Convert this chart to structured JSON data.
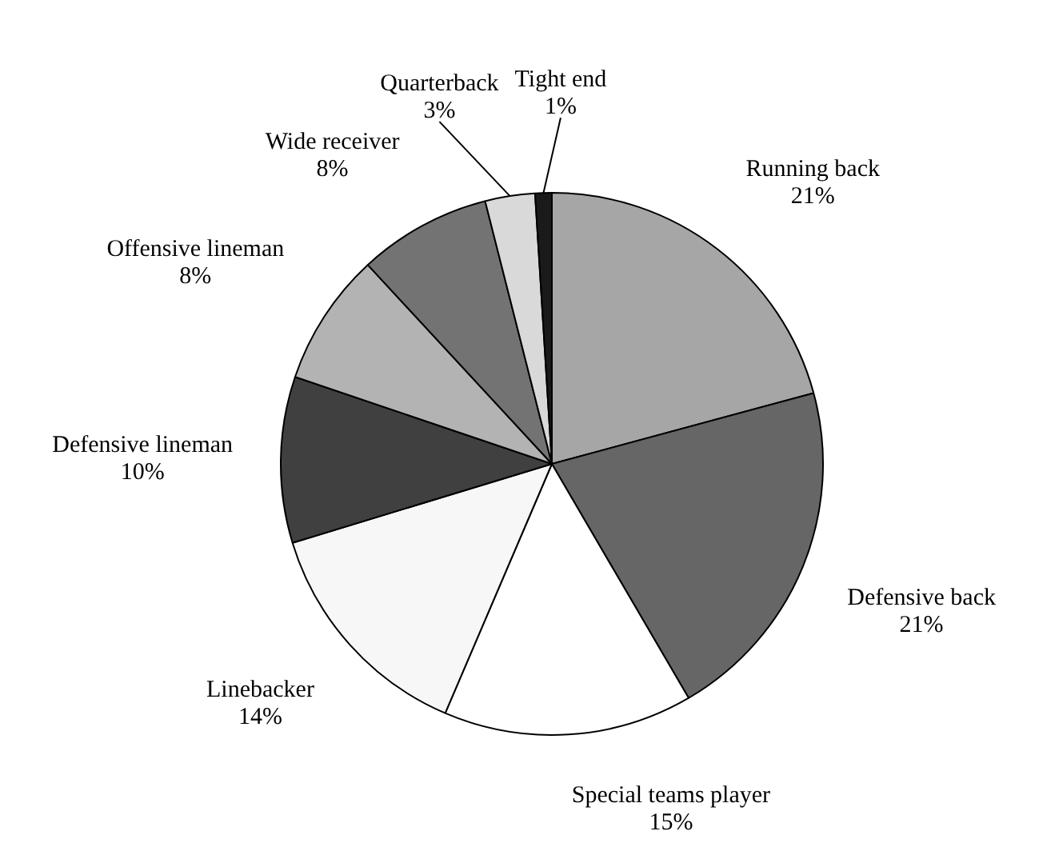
{
  "chart_data": {
    "type": "pie",
    "categories": [
      "Running back",
      "Defensive back",
      "Special teams player",
      "Linebacker",
      "Defensive lineman",
      "Offensive lineman",
      "Wide receiver",
      "Quarterback",
      "Tight end"
    ],
    "values": [
      21,
      21,
      15,
      14,
      10,
      8,
      8,
      3,
      1
    ],
    "value_labels": [
      "21%",
      "21%",
      "15%",
      "14%",
      "10%",
      "8%",
      "8%",
      "3%",
      "1%"
    ],
    "colors": [
      "#a6a6a6",
      "#666666",
      "#ffffff",
      "#f7f7f7",
      "#404040",
      "#b3b3b3",
      "#737373",
      "#d9d9d9",
      "#1a1a1a"
    ],
    "legend": false
  }
}
